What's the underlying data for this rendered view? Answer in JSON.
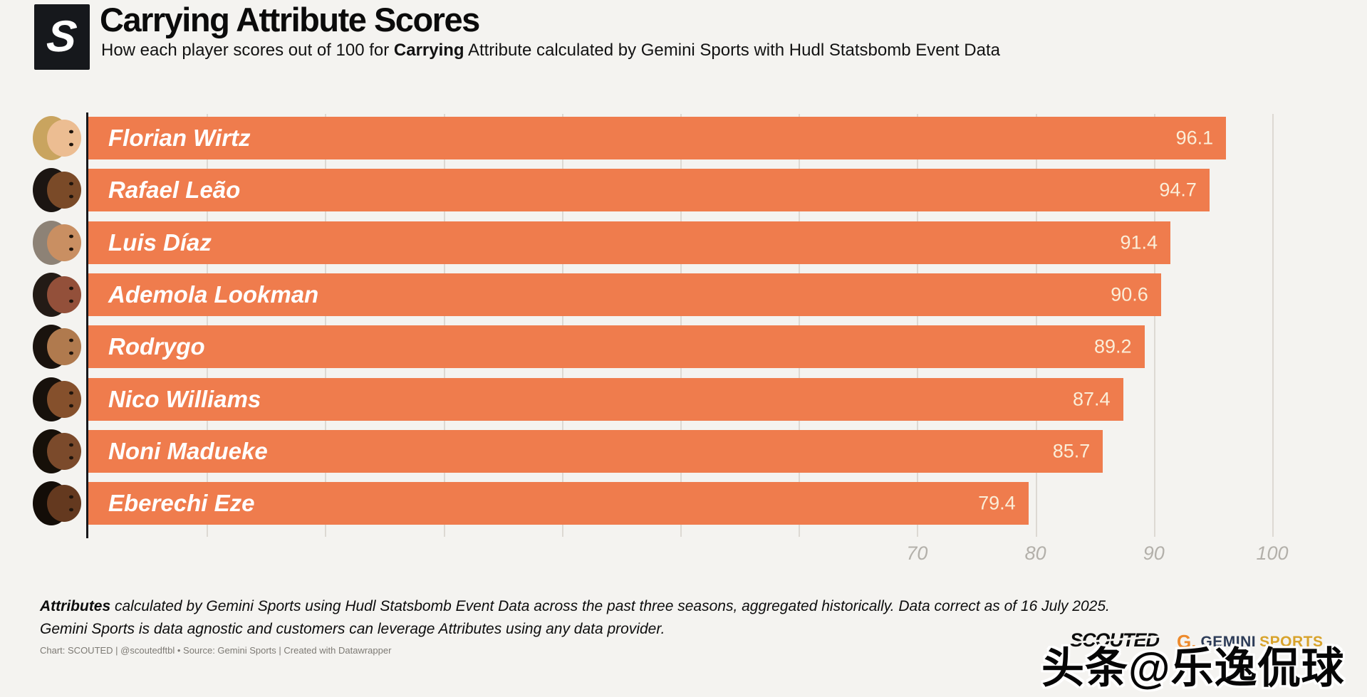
{
  "header": {
    "logo_letter": "S",
    "title": "Carrying Attribute Scores",
    "subtitle": {
      "prefix": "How each player scores out of 100 for ",
      "bold": "Carrying",
      "suffix": " Attribute calculated by Gemini Sports with Hudl Statsbomb Event Data"
    }
  },
  "chart_data": {
    "type": "bar",
    "orientation": "horizontal",
    "title": "Carrying Attribute Scores",
    "categories": [
      "Florian Wirtz",
      "Rafael Leão",
      "Luis Díaz",
      "Ademola Lookman",
      "Rodrygo",
      "Nico Williams",
      "Noni Madueke",
      "Eberechi Eze"
    ],
    "values": [
      96.1,
      94.7,
      91.4,
      90.6,
      89.2,
      87.4,
      85.7,
      79.4
    ],
    "xlabel": "",
    "ylabel": "",
    "xlim": [
      0,
      100
    ],
    "x_tick_values": [
      70,
      80,
      90,
      100
    ],
    "x_tick_labels": [
      "70",
      "80",
      "90",
      "100"
    ],
    "gridline_step": 10,
    "grid": true,
    "legend": false,
    "bar_color": "#EF7C4D",
    "value_label_color": "#FBEED8",
    "value_labels_inside_bar": true
  },
  "players": [
    {
      "name": "Florian Wirtz",
      "score": "96.1",
      "value": 96.1,
      "avatar": {
        "hair": "#c9a45f",
        "skin": "#ecbd92"
      }
    },
    {
      "name": "Rafael Leão",
      "score": "94.7",
      "value": 94.7,
      "avatar": {
        "hair": "#1b1512",
        "skin": "#7a4a28"
      }
    },
    {
      "name": "Luis Díaz",
      "score": "91.4",
      "value": 91.4,
      "avatar": {
        "hair": "#8d8276",
        "skin": "#c98f62"
      }
    },
    {
      "name": "Ademola Lookman",
      "score": "90.6",
      "value": 90.6,
      "avatar": {
        "hair": "#231b16",
        "skin": "#93503a"
      }
    },
    {
      "name": "Rodrygo",
      "score": "89.2",
      "value": 89.2,
      "avatar": {
        "hair": "#1a130e",
        "skin": "#b07a4e"
      }
    },
    {
      "name": "Nico Williams",
      "score": "87.4",
      "value": 87.4,
      "avatar": {
        "hair": "#17110c",
        "skin": "#85502c"
      }
    },
    {
      "name": "Noni Madueke",
      "score": "85.7",
      "value": 85.7,
      "avatar": {
        "hair": "#161009",
        "skin": "#7b4a2b"
      }
    },
    {
      "name": "Eberechi Eze",
      "score": "79.4",
      "value": 79.4,
      "avatar": {
        "hair": "#130d08",
        "skin": "#64391f"
      }
    }
  ],
  "footer": {
    "note_bold": "Attributes",
    "note_rest": " calculated by Gemini Sports using Hudl Statsbomb Event Data across the past three seasons, aggregated historically. Data correct as of 16 July 2025.",
    "note_line2": "Gemini Sports is data agnostic and customers can leverage Attributes using any data provider.",
    "credit": "Chart: SCOUTED | @scoutedftbl • Source: Gemini Sports | Created with Datawrapper"
  },
  "branding": {
    "scouted": "SCOUTED",
    "gemini_g": "G.",
    "gemini_word1": "GEMINI",
    "gemini_word2": "SPORTS"
  },
  "watermark": "头条@乐逸侃球"
}
